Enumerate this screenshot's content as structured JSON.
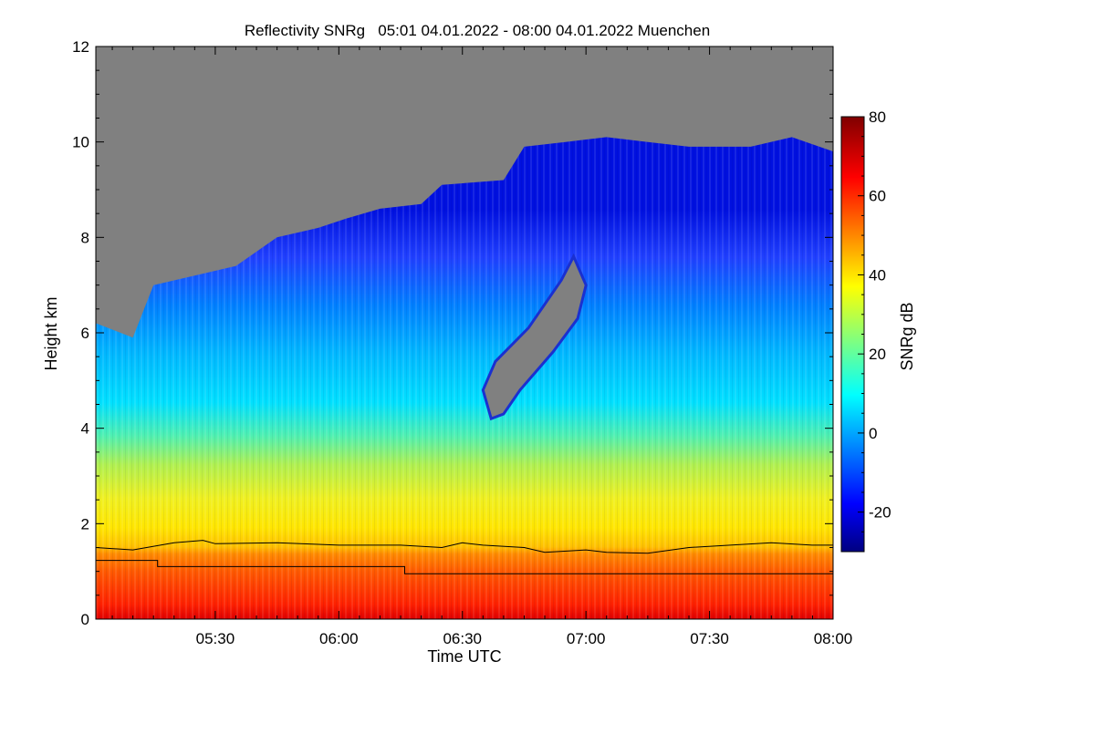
{
  "chart_data": {
    "type": "heatmap",
    "title": "Reflectivity SNRg   05:01 04.01.2022 - 08:00 04.01.2022 Muenchen",
    "xlabel": "Time UTC",
    "ylabel": "Height km",
    "x_ticks": [
      "05:30",
      "06:00",
      "06:30",
      "07:00",
      "07:30",
      "08:00"
    ],
    "y_ticks": [
      "0",
      "2",
      "4",
      "6",
      "8",
      "10",
      "12"
    ],
    "xlim": [
      "05:01",
      "08:00"
    ],
    "ylim": [
      0,
      12
    ],
    "colorbar": {
      "label": "SNRg dB",
      "ticks": [
        "-20",
        "0",
        "20",
        "40",
        "60",
        "80"
      ],
      "range": [
        -30,
        80
      ],
      "colormap": "jet"
    },
    "no_signal_color": "#808080",
    "signal_top_km": [
      {
        "time": "05:01",
        "height": 6.2
      },
      {
        "time": "05:10",
        "height": 5.9
      },
      {
        "time": "05:15",
        "height": 7.0
      },
      {
        "time": "05:25",
        "height": 7.2
      },
      {
        "time": "05:35",
        "height": 7.4
      },
      {
        "time": "05:45",
        "height": 8.0
      },
      {
        "time": "05:55",
        "height": 8.2
      },
      {
        "time": "06:02",
        "height": 8.4
      },
      {
        "time": "06:10",
        "height": 8.6
      },
      {
        "time": "06:20",
        "height": 8.7
      },
      {
        "time": "06:25",
        "height": 9.1
      },
      {
        "time": "06:40",
        "height": 9.2
      },
      {
        "time": "06:45",
        "height": 9.9
      },
      {
        "time": "06:55",
        "height": 10.0
      },
      {
        "time": "07:05",
        "height": 10.1
      },
      {
        "time": "07:15",
        "height": 10.0
      },
      {
        "time": "07:25",
        "height": 9.9
      },
      {
        "time": "07:40",
        "height": 9.9
      },
      {
        "time": "07:50",
        "height": 10.1
      },
      {
        "time": "08:00",
        "height": 9.8
      }
    ],
    "gap_region_km": [
      {
        "time": "06:37",
        "height": 4.2
      },
      {
        "time": "06:35",
        "height": 4.8
      },
      {
        "time": "06:38",
        "height": 5.4
      },
      {
        "time": "06:46",
        "height": 6.1
      },
      {
        "time": "06:54",
        "height": 7.1
      },
      {
        "time": "06:57",
        "height": 7.6
      },
      {
        "time": "07:00",
        "height": 7.0
      },
      {
        "time": "06:58",
        "height": 6.3
      },
      {
        "time": "06:52",
        "height": 5.6
      },
      {
        "time": "06:44",
        "height": 4.8
      },
      {
        "time": "06:40",
        "height": 4.3
      }
    ],
    "series": [
      {
        "values": [
          {
            "time": "05:01",
            "height": 1.5
          },
          {
            "time": "05:10",
            "height": 1.45
          },
          {
            "time": "05:20",
            "height": 1.6
          },
          {
            "time": "05:27",
            "height": 1.65
          },
          {
            "time": "05:30",
            "height": 1.58
          },
          {
            "time": "05:45",
            "height": 1.6
          },
          {
            "time": "06:00",
            "height": 1.55
          },
          {
            "time": "06:15",
            "height": 1.55
          },
          {
            "time": "06:25",
            "height": 1.5
          },
          {
            "time": "06:30",
            "height": 1.6
          },
          {
            "time": "06:35",
            "height": 1.55
          },
          {
            "time": "06:45",
            "height": 1.5
          },
          {
            "time": "06:50",
            "height": 1.4
          },
          {
            "time": "07:00",
            "height": 1.45
          },
          {
            "time": "07:05",
            "height": 1.4
          },
          {
            "time": "07:15",
            "height": 1.38
          },
          {
            "time": "07:25",
            "height": 1.5
          },
          {
            "time": "07:35",
            "height": 1.55
          },
          {
            "time": "07:45",
            "height": 1.6
          },
          {
            "time": "07:55",
            "height": 1.55
          },
          {
            "time": "08:00",
            "height": 1.55
          }
        ]
      },
      {
        "values": [
          {
            "time": "05:01",
            "height": 1.23
          },
          {
            "time": "05:16",
            "height": 1.23
          },
          {
            "time": "05:16",
            "height": 1.1
          },
          {
            "time": "06:16",
            "height": 1.1
          },
          {
            "time": "06:16",
            "height": 0.95
          },
          {
            "time": "08:00",
            "height": 0.95
          }
        ]
      }
    ]
  }
}
